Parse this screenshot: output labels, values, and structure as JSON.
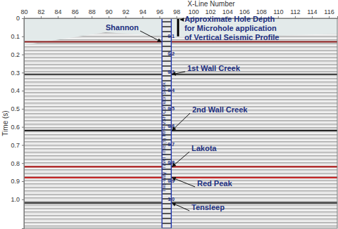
{
  "chart_data": {
    "type": "seismic",
    "x_label": "X-Line Number",
    "y_label": "Time (s)",
    "xlim": [
      80,
      117
    ],
    "ylim": [
      0,
      1.16
    ],
    "xticks": [
      80,
      82,
      84,
      86,
      88,
      90,
      92,
      94,
      96,
      98,
      100,
      102,
      104,
      106,
      108,
      110,
      112,
      114,
      116
    ],
    "yticks": [
      0,
      0.1,
      0.2,
      0.3,
      0.4,
      0.5,
      0.6,
      0.7,
      0.8,
      0.9,
      {
        "value": 1,
        "label": "1.0"
      }
    ],
    "color": "#1c2f80",
    "annotations": [
      {
        "text": "Shannon",
        "time": 0.13
      },
      {
        "text": "1st Wall Creek",
        "time": 0.31
      },
      {
        "text": "2nd Wall Creek",
        "time": 0.62
      },
      {
        "text": "Lakota",
        "time": 0.82
      },
      {
        "text": "Red Peak",
        "time": 0.88
      },
      {
        "text": "Tensleep",
        "time": 1.02
      }
    ],
    "vsp_corridor": {
      "label": "Two-Way Travel Time (s) MH4 VSP Corridor Stack",
      "xlim": [
        96.3,
        97.4
      ],
      "ticks": [
        0.1,
        0.2,
        0.3,
        0.4,
        0.5,
        0.6,
        0.7,
        0.8,
        0.9,
        {
          "value": 1,
          "label": "1.0"
        }
      ]
    },
    "hole": {
      "x": 98.2,
      "depth": 0.1,
      "text": [
        "Approximate Hole Depth",
        "for Microhole application",
        "of Vertical Seismic Profile"
      ]
    }
  }
}
